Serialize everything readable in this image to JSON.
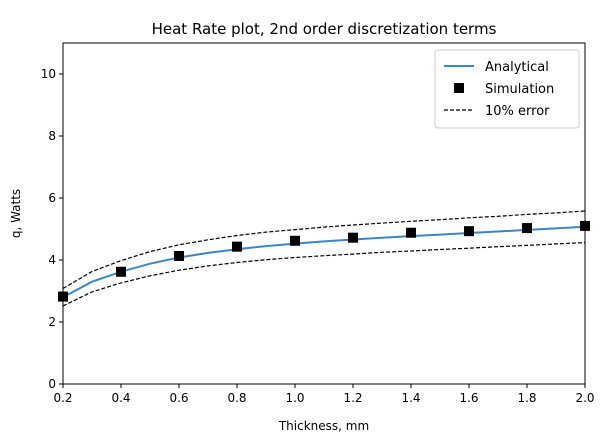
{
  "chart_data": {
    "type": "line",
    "title": "Heat Rate plot, 2nd order discretization terms",
    "xlabel": "Thickness, mm",
    "ylabel": "q, Watts",
    "xlim": [
      0.2,
      2.0
    ],
    "ylim": [
      0,
      11
    ],
    "xticks": [
      0.2,
      0.4,
      0.6,
      0.8,
      1.0,
      1.2,
      1.4,
      1.6,
      1.8,
      2.0
    ],
    "xtick_labels": [
      "0.2",
      "0.4",
      "0.6",
      "0.8",
      "1.0",
      "1.2",
      "1.4",
      "1.6",
      "1.8",
      "2.0"
    ],
    "yticks": [
      0,
      2,
      4,
      6,
      8,
      10
    ],
    "ytick_labels": [
      "0",
      "2",
      "4",
      "6",
      "8",
      "10"
    ],
    "grid": false,
    "legend_position": "top-right",
    "series": [
      {
        "name": "Analytical",
        "kind": "line",
        "color": "#3a86c8",
        "x": [
          0.2,
          0.3,
          0.4,
          0.5,
          0.6,
          0.7,
          0.8,
          0.9,
          1.0,
          1.1,
          1.2,
          1.3,
          1.4,
          1.5,
          1.6,
          1.7,
          1.8,
          1.9,
          2.0
        ],
        "y": [
          2.8,
          3.3,
          3.62,
          3.88,
          4.08,
          4.23,
          4.35,
          4.45,
          4.53,
          4.6,
          4.66,
          4.72,
          4.77,
          4.82,
          4.87,
          4.92,
          4.97,
          5.02,
          5.07
        ]
      },
      {
        "name": "Simulation",
        "kind": "marker",
        "color": "#000000",
        "x": [
          0.2,
          0.4,
          0.6,
          0.8,
          1.0,
          1.2,
          1.4,
          1.6,
          1.8,
          2.0
        ],
        "y": [
          2.82,
          3.62,
          4.13,
          4.43,
          4.62,
          4.72,
          4.88,
          4.93,
          5.03,
          5.1
        ]
      },
      {
        "name": "10% error",
        "kind": "dashed",
        "color": "#000000",
        "x": [
          0.2,
          0.3,
          0.4,
          0.5,
          0.6,
          0.7,
          0.8,
          0.9,
          1.0,
          1.1,
          1.2,
          1.3,
          1.4,
          1.5,
          1.6,
          1.7,
          1.8,
          1.9,
          2.0
        ],
        "y": [
          3.08,
          3.63,
          3.98,
          4.27,
          4.49,
          4.65,
          4.79,
          4.9,
          4.98,
          5.06,
          5.13,
          5.19,
          5.25,
          5.3,
          5.36,
          5.41,
          5.47,
          5.52,
          5.58
        ]
      },
      {
        "name": "",
        "kind": "dashed",
        "color": "#000000",
        "x": [
          0.2,
          0.3,
          0.4,
          0.5,
          0.6,
          0.7,
          0.8,
          0.9,
          1.0,
          1.1,
          1.2,
          1.3,
          1.4,
          1.5,
          1.6,
          1.7,
          1.8,
          1.9,
          2.0
        ],
        "y": [
          2.52,
          2.97,
          3.26,
          3.49,
          3.67,
          3.81,
          3.92,
          4.01,
          4.08,
          4.14,
          4.19,
          4.25,
          4.29,
          4.34,
          4.38,
          4.43,
          4.47,
          4.52,
          4.56
        ]
      }
    ]
  }
}
